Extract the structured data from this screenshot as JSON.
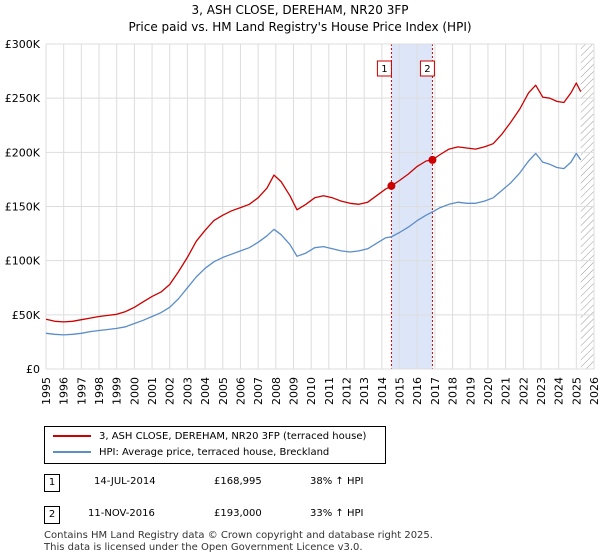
{
  "title": {
    "line1": "3, ASH CLOSE, DEREHAM, NR20 3FP",
    "line2": "Price paid vs. HM Land Registry's House Price Index (HPI)"
  },
  "colors": {
    "red": "#cc0000",
    "blue": "#5b8dc9",
    "grid": "#dddddd",
    "shade": "#dde6f8"
  },
  "chart_data": {
    "type": "line",
    "x_range": [
      1995,
      2026
    ],
    "ylim": [
      0,
      300000
    ],
    "y_ticks": [
      0,
      50000,
      100000,
      150000,
      200000,
      250000,
      300000
    ],
    "y_tick_labels": [
      "£0",
      "£50K",
      "£100K",
      "£150K",
      "£200K",
      "£250K",
      "£300K"
    ],
    "x_ticks": [
      "1995",
      "1996",
      "1997",
      "1998",
      "1999",
      "2000",
      "2001",
      "2002",
      "2003",
      "2004",
      "2005",
      "2006",
      "2007",
      "2008",
      "2009",
      "2010",
      "2011",
      "2012",
      "2013",
      "2014",
      "2015",
      "2016",
      "2017",
      "2018",
      "2019",
      "2020",
      "2021",
      "2022",
      "2023",
      "2024",
      "2025",
      "2026"
    ],
    "shaded_period": [
      2014.54,
      2016.86
    ],
    "future_hatch_from": 2025.25,
    "series": [
      {
        "name": "3, ASH CLOSE, DEREHAM, NR20 3FP (terraced house)",
        "color": "#cc0000",
        "points": [
          [
            1995.0,
            46000
          ],
          [
            1995.5,
            44000
          ],
          [
            1996.0,
            43500
          ],
          [
            1996.5,
            44000
          ],
          [
            1997.0,
            45500
          ],
          [
            1997.5,
            47000
          ],
          [
            1998.0,
            48500
          ],
          [
            1998.5,
            49500
          ],
          [
            1999.0,
            50500
          ],
          [
            1999.5,
            53000
          ],
          [
            2000.0,
            57000
          ],
          [
            2000.5,
            62000
          ],
          [
            2001.0,
            67000
          ],
          [
            2001.5,
            71000
          ],
          [
            2002.0,
            78000
          ],
          [
            2002.5,
            90000
          ],
          [
            2003.0,
            103000
          ],
          [
            2003.5,
            118000
          ],
          [
            2004.0,
            128000
          ],
          [
            2004.5,
            137000
          ],
          [
            2005.0,
            142000
          ],
          [
            2005.5,
            146000
          ],
          [
            2006.0,
            149000
          ],
          [
            2006.5,
            152000
          ],
          [
            2007.0,
            158000
          ],
          [
            2007.5,
            167000
          ],
          [
            2007.9,
            179000
          ],
          [
            2008.3,
            173000
          ],
          [
            2008.8,
            160000
          ],
          [
            2009.2,
            147000
          ],
          [
            2009.7,
            152000
          ],
          [
            2010.2,
            158000
          ],
          [
            2010.7,
            160000
          ],
          [
            2011.2,
            158000
          ],
          [
            2011.7,
            155000
          ],
          [
            2012.2,
            153000
          ],
          [
            2012.7,
            152000
          ],
          [
            2013.2,
            154000
          ],
          [
            2013.7,
            160000
          ],
          [
            2014.2,
            166000
          ],
          [
            2014.54,
            168995
          ],
          [
            2015.0,
            174000
          ],
          [
            2015.5,
            180000
          ],
          [
            2016.0,
            187000
          ],
          [
            2016.5,
            192000
          ],
          [
            2016.86,
            193000
          ],
          [
            2017.3,
            198000
          ],
          [
            2017.8,
            203000
          ],
          [
            2018.3,
            205000
          ],
          [
            2018.8,
            204000
          ],
          [
            2019.3,
            203000
          ],
          [
            2019.8,
            205000
          ],
          [
            2020.3,
            208000
          ],
          [
            2020.8,
            217000
          ],
          [
            2021.3,
            228000
          ],
          [
            2021.8,
            240000
          ],
          [
            2022.3,
            255000
          ],
          [
            2022.7,
            262000
          ],
          [
            2023.1,
            251000
          ],
          [
            2023.5,
            250000
          ],
          [
            2023.9,
            247000
          ],
          [
            2024.3,
            246000
          ],
          [
            2024.7,
            255000
          ],
          [
            2025.0,
            264000
          ],
          [
            2025.25,
            256000
          ]
        ]
      },
      {
        "name": "HPI: Average price, terraced house, Breckland",
        "color": "#5b8dc9",
        "points": [
          [
            1995.0,
            33000
          ],
          [
            1995.5,
            32000
          ],
          [
            1996.0,
            31500
          ],
          [
            1996.5,
            32000
          ],
          [
            1997.0,
            33000
          ],
          [
            1997.5,
            34500
          ],
          [
            1998.0,
            35500
          ],
          [
            1998.5,
            36500
          ],
          [
            1999.0,
            37500
          ],
          [
            1999.5,
            39000
          ],
          [
            2000.0,
            42000
          ],
          [
            2000.5,
            45000
          ],
          [
            2001.0,
            48500
          ],
          [
            2001.5,
            52000
          ],
          [
            2002.0,
            57000
          ],
          [
            2002.5,
            65000
          ],
          [
            2003.0,
            75000
          ],
          [
            2003.5,
            85000
          ],
          [
            2004.0,
            93000
          ],
          [
            2004.5,
            99000
          ],
          [
            2005.0,
            103000
          ],
          [
            2005.5,
            106000
          ],
          [
            2006.0,
            109000
          ],
          [
            2006.5,
            112000
          ],
          [
            2007.0,
            117000
          ],
          [
            2007.5,
            123000
          ],
          [
            2007.9,
            129000
          ],
          [
            2008.3,
            124000
          ],
          [
            2008.8,
            115000
          ],
          [
            2009.2,
            104000
          ],
          [
            2009.7,
            107000
          ],
          [
            2010.2,
            112000
          ],
          [
            2010.7,
            113000
          ],
          [
            2011.2,
            111000
          ],
          [
            2011.7,
            109000
          ],
          [
            2012.2,
            108000
          ],
          [
            2012.7,
            109000
          ],
          [
            2013.2,
            111000
          ],
          [
            2013.7,
            116000
          ],
          [
            2014.2,
            121000
          ],
          [
            2014.54,
            122000
          ],
          [
            2015.0,
            126000
          ],
          [
            2015.5,
            131000
          ],
          [
            2016.0,
            137000
          ],
          [
            2016.5,
            142000
          ],
          [
            2016.86,
            145000
          ],
          [
            2017.3,
            149000
          ],
          [
            2017.8,
            152000
          ],
          [
            2018.3,
            154000
          ],
          [
            2018.8,
            153000
          ],
          [
            2019.3,
            153000
          ],
          [
            2019.8,
            155000
          ],
          [
            2020.3,
            158000
          ],
          [
            2020.8,
            165000
          ],
          [
            2021.3,
            172000
          ],
          [
            2021.8,
            181000
          ],
          [
            2022.3,
            192000
          ],
          [
            2022.7,
            199000
          ],
          [
            2023.1,
            191000
          ],
          [
            2023.5,
            189000
          ],
          [
            2023.9,
            186000
          ],
          [
            2024.3,
            185000
          ],
          [
            2024.7,
            191000
          ],
          [
            2025.0,
            199000
          ],
          [
            2025.25,
            193000
          ]
        ]
      }
    ],
    "sales": [
      {
        "label": "1",
        "x": 2014.54,
        "y": 168995
      },
      {
        "label": "2",
        "x": 2016.86,
        "y": 193000
      }
    ]
  },
  "legend": {
    "property_label": "3, ASH CLOSE, DEREHAM, NR20 3FP (terraced house)",
    "hpi_label": "HPI: Average price, terraced house, Breckland"
  },
  "transactions": [
    {
      "num": "1",
      "date": "14-JUL-2014",
      "price": "£168,995",
      "hpi": "38% ↑ HPI"
    },
    {
      "num": "2",
      "date": "11-NOV-2016",
      "price": "£193,000",
      "hpi": "33% ↑ HPI"
    }
  ],
  "footer": {
    "line1": "Contains HM Land Registry data © Crown copyright and database right 2025.",
    "line2": "This data is licensed under the Open Government Licence v3.0."
  }
}
